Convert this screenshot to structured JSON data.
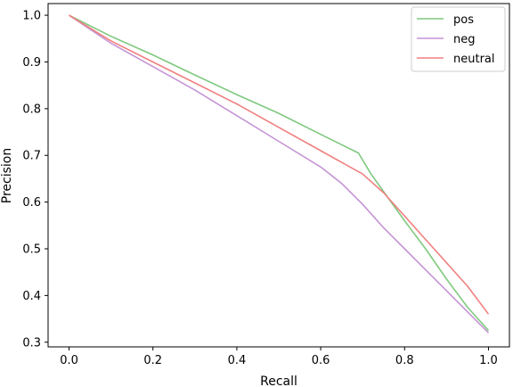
{
  "chart_data": {
    "type": "line",
    "title": "",
    "xlabel": "Recall",
    "ylabel": "Precision",
    "xlim": [
      -0.05,
      1.05
    ],
    "ylim": [
      0.29,
      1.025
    ],
    "xticks": [
      "0.0",
      "0.2",
      "0.4",
      "0.6",
      "0.8",
      "1.0"
    ],
    "yticks": [
      "0.3",
      "0.4",
      "0.5",
      "0.6",
      "0.7",
      "0.8",
      "0.9",
      "1.0"
    ],
    "grid": false,
    "legend_position": "top-right",
    "series": [
      {
        "name": "pos",
        "color": "#7fc97f",
        "x": [
          0,
          0.1,
          0.2,
          0.3,
          0.4,
          0.5,
          0.6,
          0.69,
          0.72,
          0.76,
          0.8,
          0.85,
          0.9,
          0.95,
          1.0
        ],
        "y": [
          1.0,
          0.955,
          0.915,
          0.872,
          0.83,
          0.79,
          0.745,
          0.705,
          0.66,
          0.61,
          0.56,
          0.5,
          0.435,
          0.375,
          0.325
        ]
      },
      {
        "name": "neg",
        "color": "#c594d5",
        "x": [
          0,
          0.1,
          0.2,
          0.3,
          0.4,
          0.5,
          0.6,
          0.65,
          0.7,
          0.75,
          0.8,
          0.85,
          0.9,
          0.95,
          1.0
        ],
        "y": [
          1.0,
          0.94,
          0.89,
          0.84,
          0.785,
          0.73,
          0.675,
          0.64,
          0.595,
          0.545,
          0.5,
          0.455,
          0.41,
          0.365,
          0.32
        ]
      },
      {
        "name": "neutral",
        "color": "#f08080",
        "x": [
          0,
          0.1,
          0.2,
          0.3,
          0.4,
          0.5,
          0.6,
          0.7,
          0.75,
          0.8,
          0.85,
          0.9,
          0.95,
          1.0
        ],
        "y": [
          1.0,
          0.945,
          0.9,
          0.855,
          0.81,
          0.76,
          0.71,
          0.66,
          0.62,
          0.57,
          0.52,
          0.47,
          0.42,
          0.36
        ]
      }
    ]
  }
}
